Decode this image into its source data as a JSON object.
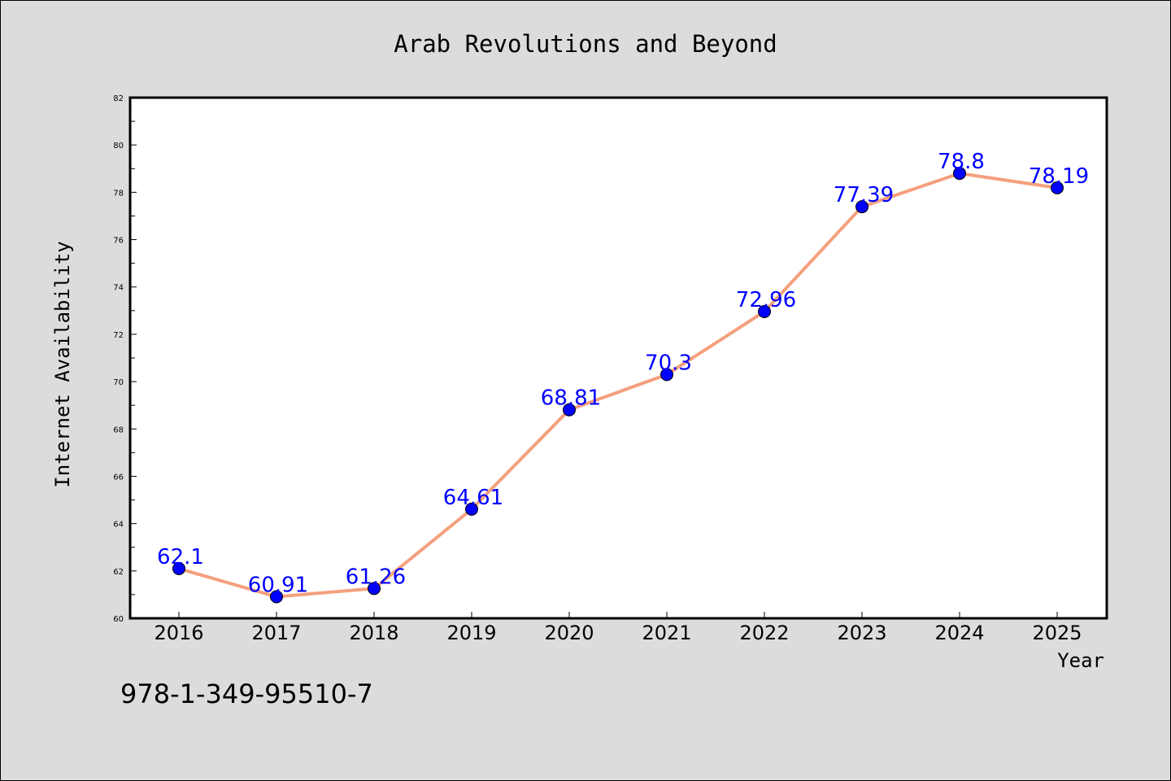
{
  "chart_data": {
    "type": "line",
    "title": "Arab Revolutions and Beyond",
    "xlabel": "Year",
    "ylabel": "Internet Availability",
    "categories": [
      "2016",
      "2017",
      "2018",
      "2019",
      "2020",
      "2021",
      "2022",
      "2023",
      "2024",
      "2025"
    ],
    "series": [
      {
        "values": [
          62.1,
          60.91,
          61.26,
          64.61,
          68.81,
          70.3,
          72.96,
          77.39,
          78.8,
          78.19
        ],
        "line_color": "#f4a07e",
        "marker_color": "#0000ff"
      }
    ],
    "ylim": [
      60,
      82
    ],
    "yticks": [
      60,
      62,
      64,
      66,
      68,
      70,
      72,
      74,
      76,
      78,
      80,
      82
    ],
    "data_label_color": "#0000ff",
    "grid": false,
    "legend": "none"
  },
  "footer": {
    "isbn": "978-1-349-95510-7"
  }
}
